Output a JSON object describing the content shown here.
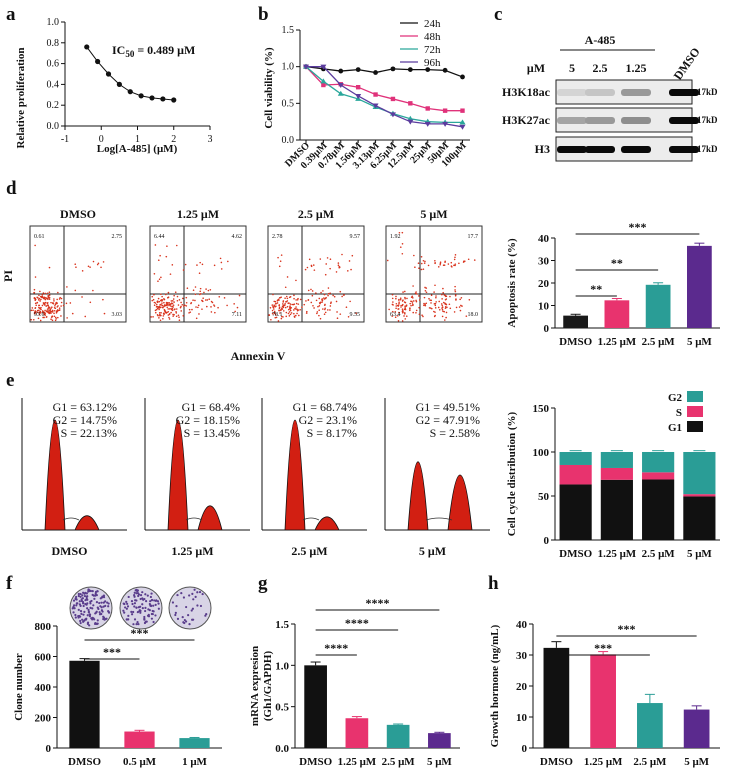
{
  "panels": {
    "a": {
      "label": "a"
    },
    "b": {
      "label": "b"
    },
    "c": {
      "label": "c"
    },
    "d": {
      "label": "d"
    },
    "e": {
      "label": "e"
    },
    "f": {
      "label": "f"
    },
    "g": {
      "label": "g"
    },
    "h": {
      "label": "h"
    }
  },
  "chart_data": [
    {
      "id": "a",
      "type": "scatter",
      "ylabel": "Relative proliferation",
      "xlabel": "Log[A-485] (μM)",
      "annotation": "IC50 = 0.489 μM",
      "ann_main": "IC",
      "ann_sub": "50",
      "ann_rest": " = 0.489 μM",
      "xlim": [
        -1,
        3
      ],
      "ylim": [
        0,
        1
      ],
      "xticks": [
        "-1",
        "0",
        "1",
        "2",
        "3"
      ],
      "yticks": [
        "0.0",
        "0.2",
        "0.4",
        "0.6",
        "0.8",
        "1.0"
      ],
      "x": [
        -0.4,
        -0.1,
        0.2,
        0.5,
        0.8,
        1.1,
        1.4,
        1.7,
        2.0
      ],
      "y": [
        0.76,
        0.62,
        0.5,
        0.4,
        0.33,
        0.29,
        0.27,
        0.26,
        0.25
      ]
    },
    {
      "id": "b",
      "type": "line",
      "ylabel": "Cell viability (%)",
      "categories": [
        "DMSO",
        "0.39μM",
        "0.78μM",
        "1.56μM",
        "3.13μM",
        "6.25μM",
        "12.5μM",
        "25μM",
        "50μM",
        "100μM"
      ],
      "ylim": [
        0,
        1.5
      ],
      "yticks": [
        "0.0",
        "0.5",
        "1.0",
        "1.5"
      ],
      "series": [
        {
          "name": "24h",
          "color": "#111111",
          "values": [
            1.0,
            0.97,
            0.94,
            0.96,
            0.92,
            0.97,
            0.96,
            0.96,
            0.95,
            0.86
          ]
        },
        {
          "name": "48h",
          "color": "#e0327a",
          "values": [
            1.0,
            0.75,
            0.76,
            0.72,
            0.62,
            0.56,
            0.5,
            0.43,
            0.4,
            0.4
          ]
        },
        {
          "name": "72h",
          "color": "#2aa79b",
          "values": [
            1.0,
            0.8,
            0.63,
            0.56,
            0.45,
            0.36,
            0.29,
            0.25,
            0.24,
            0.24
          ]
        },
        {
          "name": "96h",
          "color": "#5b3c9e",
          "values": [
            1.0,
            1.0,
            0.75,
            0.6,
            0.47,
            0.35,
            0.25,
            0.22,
            0.22,
            0.18
          ]
        }
      ]
    },
    {
      "id": "c",
      "type": "table",
      "group_label": "A-485",
      "unit_label": "μM",
      "columns": [
        "5",
        "2.5",
        "1.25",
        "DMSO"
      ],
      "rows": [
        {
          "name": "H3K18ac",
          "kd": "17kD",
          "band_intensity": [
            0.08,
            0.15,
            0.35,
            1.0
          ]
        },
        {
          "name": "H3K27ac",
          "kd": "17kD",
          "band_intensity": [
            0.3,
            0.35,
            0.4,
            1.0
          ]
        },
        {
          "name": "H3",
          "kd": "17kD",
          "band_intensity": [
            1.0,
            1.0,
            1.0,
            1.0
          ]
        }
      ]
    },
    {
      "id": "d_flow",
      "type": "scatter",
      "xlabel": "Annexin V",
      "ylabel": "PI",
      "plot_titles": [
        "DMSO",
        "1.25 μM",
        "2.5 μM",
        "5 μM"
      ],
      "quadrants": [
        {
          "ul": "0.61",
          "ur": "2.75",
          "ll": "93.6",
          "lr": "3.03"
        },
        {
          "ul": "6.44",
          "ur": "4.62",
          "ll": "",
          "lr": "7.11"
        },
        {
          "ul": "2.78",
          "ur": "9.57",
          "ll": "78.1",
          "lr": "9.55"
        },
        {
          "ul": "1.92",
          "ur": "17.7",
          "ll": "63.4",
          "lr": "18.0"
        }
      ]
    },
    {
      "id": "d_bar",
      "type": "bar",
      "ylabel": "Apoptosis rate (%)",
      "categories": [
        "DMSO",
        "1.25 μM",
        "2.5 μM",
        "5 μM"
      ],
      "values": [
        5.5,
        12.3,
        19.2,
        36.5
      ],
      "errors": [
        0.6,
        0.8,
        0.9,
        1.2
      ],
      "colors": [
        "#1a1a1a",
        "#e8336e",
        "#2a9d96",
        "#5b2a8e"
      ],
      "ylim": [
        0,
        40
      ],
      "yticks": [
        "0",
        "10",
        "20",
        "30",
        "40"
      ],
      "significance": [
        {
          "from": 0,
          "to": 1,
          "label": "**"
        },
        {
          "from": 0,
          "to": 2,
          "label": "**"
        },
        {
          "from": 0,
          "to": 3,
          "label": "***"
        }
      ]
    },
    {
      "id": "e_hist",
      "type": "area",
      "plot_titles": [
        "DMSO",
        "1.25 μM",
        "2.5 μM",
        "5 μM"
      ],
      "stats": [
        [
          "G1 = 63.12%",
          "G2 = 14.75%",
          "S = 22.13%"
        ],
        [
          "G1 = 68.4%",
          "G2 = 18.15%",
          "S = 13.45%"
        ],
        [
          "G1 = 68.74%",
          "G2 = 23.1%",
          "S = 8.17%"
        ],
        [
          "G1 = 49.51%",
          "G2 = 47.91%",
          "S = 2.58%"
        ]
      ],
      "g1_peak": [
        1.0,
        1.0,
        1.0,
        0.62
      ],
      "g2_peak": [
        0.13,
        0.22,
        0.12,
        0.5
      ]
    },
    {
      "id": "e_bar",
      "type": "bar",
      "ylabel": "Cell cycle distribution (%)",
      "categories": [
        "DMSO",
        "1.25 μM",
        "2.5 μM",
        "5 μM"
      ],
      "series": [
        {
          "name": "G1",
          "color": "#111111",
          "values": [
            63.12,
            68.4,
            68.74,
            49.51
          ]
        },
        {
          "name": "S",
          "color": "#e8336e",
          "values": [
            22.13,
            13.45,
            8.17,
            2.58
          ]
        },
        {
          "name": "G2",
          "color": "#2a9d96",
          "values": [
            14.75,
            18.15,
            23.1,
            47.91
          ]
        }
      ],
      "legend_order": [
        "G2",
        "S",
        "G1"
      ],
      "ylim": [
        0,
        150
      ],
      "yticks": [
        "0",
        "50",
        "100",
        "150"
      ]
    },
    {
      "id": "f",
      "type": "bar",
      "ylabel": "Clone number",
      "categories": [
        "DMSO",
        "0.5 μM",
        "1 μM"
      ],
      "values": [
        572,
        108,
        65
      ],
      "errors": [
        14,
        8,
        4
      ],
      "colors": [
        "#111111",
        "#e8336e",
        "#2a9d96"
      ],
      "ylim": [
        0,
        800
      ],
      "yticks": [
        "0",
        "200",
        "400",
        "600",
        "800"
      ],
      "significance": [
        {
          "from": 0,
          "to": 1,
          "label": "***"
        },
        {
          "from": 0,
          "to": 2,
          "label": "***"
        }
      ],
      "dish_density": [
        0.9,
        0.6,
        0.2
      ]
    },
    {
      "id": "g",
      "type": "bar",
      "ylabel": "mRNA expresion",
      "ylabel2": "(Gh1/GAPDH)",
      "categories": [
        "DMSO",
        "1.25 μM",
        "2.5 μM",
        "5 μM"
      ],
      "values": [
        1.0,
        0.36,
        0.28,
        0.18
      ],
      "errors": [
        0.04,
        0.02,
        0.01,
        0.01
      ],
      "colors": [
        "#111111",
        "#e8336e",
        "#2a9d96",
        "#5b2a8e"
      ],
      "ylim": [
        0,
        1.5
      ],
      "yticks": [
        "0.0",
        "0.5",
        "1.0",
        "1.5"
      ],
      "significance": [
        {
          "from": 0,
          "to": 1,
          "label": "****"
        },
        {
          "from": 0,
          "to": 2,
          "label": "****"
        },
        {
          "from": 0,
          "to": 3,
          "label": "****"
        }
      ]
    },
    {
      "id": "h",
      "type": "bar",
      "ylabel": "Growth hormone (ng/mL)",
      "categories": [
        "DMSO",
        "1.25 μM",
        "2.5 μM",
        "5 μM"
      ],
      "values": [
        32.3,
        30.2,
        14.5,
        12.4
      ],
      "errors": [
        2.0,
        0.9,
        2.8,
        1.2
      ],
      "colors": [
        "#111111",
        "#e8336e",
        "#2a9d96",
        "#5b2a8e"
      ],
      "ylim": [
        0,
        40
      ],
      "yticks": [
        "0",
        "10",
        "20",
        "30",
        "40"
      ],
      "significance": [
        {
          "from": 0,
          "to": 2,
          "label": "***"
        },
        {
          "from": 0,
          "to": 3,
          "label": "***"
        }
      ]
    }
  ]
}
